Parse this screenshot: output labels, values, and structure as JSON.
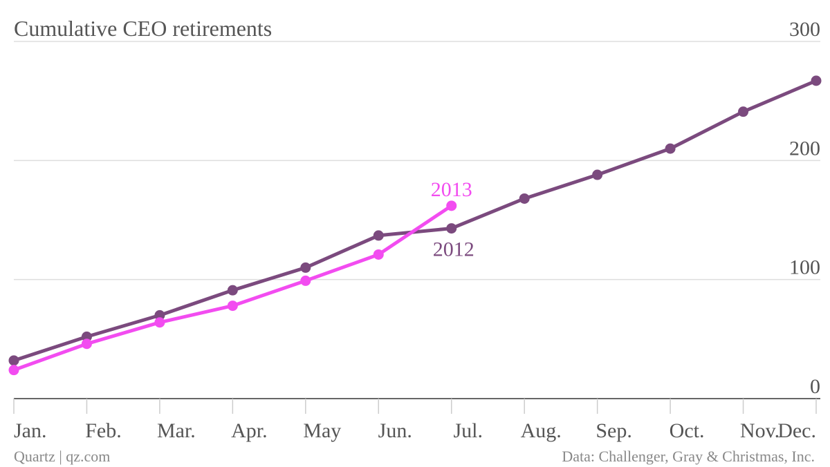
{
  "chart_data": {
    "type": "line",
    "title": "Cumulative CEO retirements",
    "categories": [
      "Jan.",
      "Feb.",
      "Mar.",
      "Apr.",
      "May",
      "Jun.",
      "Jul.",
      "Aug.",
      "Sep.",
      "Oct.",
      "Nov.",
      "Dec."
    ],
    "series": [
      {
        "name": "2012",
        "color": "#7b4a7e",
        "values": [
          32,
          52,
          70,
          91,
          110,
          137,
          143,
          168,
          188,
          210,
          241,
          267
        ]
      },
      {
        "name": "2013",
        "color": "#f24cf0",
        "values": [
          24,
          46,
          64,
          78,
          99,
          121,
          162,
          null,
          null,
          null,
          null,
          null
        ]
      }
    ],
    "ylim": [
      0,
      300
    ],
    "yticks": [
      0,
      100,
      200,
      300
    ],
    "grid": true,
    "credit": "Quartz | qz.com",
    "source": "Data: Challenger, Gray & Christmas, Inc."
  }
}
